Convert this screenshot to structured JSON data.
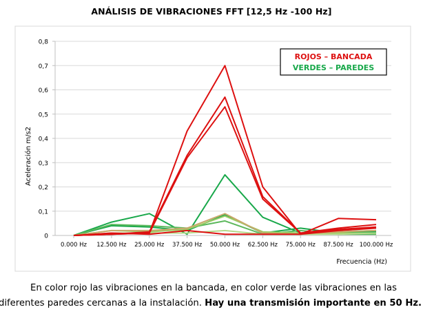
{
  "caption": {
    "line1": "En color rojo las vibraciones en la bancada, en color verde las vibraciones en las",
    "line2_normal": "diferentes paredes cercanas a la instalación.",
    "line2_bold": "Hay una transmisión importante en 50 Hz."
  },
  "colors": {
    "red": "#dd1010",
    "green": "#18a84a",
    "green_mid": "#5cb85c",
    "green_light": "#9ccc65",
    "green_pale": "#b5d98a",
    "tan": "#c9a86a",
    "axis": "#bfbfbf",
    "grid": "#d9d9d9"
  },
  "chart_data": {
    "type": "line",
    "title": "ANÁLISIS DE VIBRACIONES FFT [12,5 Hz -100 Hz]",
    "xlabel": "Frecuencia (Hz)",
    "ylabel": "Aceleración m/s2",
    "ylim": [
      0,
      0.8
    ],
    "yticks": [
      "0",
      "0,1",
      "0,2",
      "0,3",
      "0,4",
      "0,5",
      "0,6",
      "0,7",
      "0,8"
    ],
    "grid": true,
    "categories": [
      "0.000 Hz",
      "12.500 Hz",
      "25.000 Hz",
      "37.500 Hz",
      "50.000 Hz",
      "62.500 Hz",
      "75.000 Hz",
      "87.500 Hz",
      "100.000 Hz"
    ],
    "legend": {
      "position": "top-right",
      "entries": [
        {
          "text": "ROJOS – BANCADA",
          "color": "red"
        },
        {
          "text": "VERDES – PAREDES",
          "color": "green"
        }
      ]
    },
    "series": [
      {
        "color": "red",
        "values": [
          0,
          0.005,
          0.01,
          0.43,
          0.7,
          0.2,
          0.005,
          0.07,
          0.065
        ]
      },
      {
        "color": "red",
        "values": [
          0,
          0.005,
          0.015,
          0.33,
          0.57,
          0.16,
          0.01,
          0.03,
          0.045
        ]
      },
      {
        "color": "red",
        "values": [
          0,
          0.005,
          0.01,
          0.32,
          0.53,
          0.15,
          0.01,
          0.025,
          0.035
        ]
      },
      {
        "color": "red",
        "values": [
          0,
          0.01,
          0.005,
          0.02,
          0.005,
          0.005,
          0.005,
          0.02,
          0.03
        ]
      },
      {
        "color": "green",
        "values": [
          0,
          0.055,
          0.09,
          0.005,
          0.25,
          0.075,
          0.01,
          0.015,
          0.02
        ]
      },
      {
        "color": "green",
        "values": [
          0,
          0.04,
          0.035,
          0.02,
          0.085,
          0.01,
          0.03,
          0.01,
          0.015
        ]
      },
      {
        "color": "green_mid",
        "values": [
          0,
          0.045,
          0.04,
          0.03,
          0.06,
          0.005,
          0.02,
          0.005,
          0.005
        ]
      },
      {
        "color": "green_light",
        "values": [
          0,
          0.02,
          0.015,
          0.025,
          0.08,
          0.015,
          0.01,
          0.01,
          0.01
        ]
      },
      {
        "color": "tan",
        "values": [
          0,
          0.02,
          0.02,
          0.03,
          0.09,
          0.01,
          0.005,
          0.015,
          0.02
        ]
      },
      {
        "color": "green_pale",
        "values": [
          0,
          0.01,
          0.01,
          0.01,
          0.02,
          0.005,
          0.005,
          0.005,
          0.01
        ]
      }
    ]
  }
}
